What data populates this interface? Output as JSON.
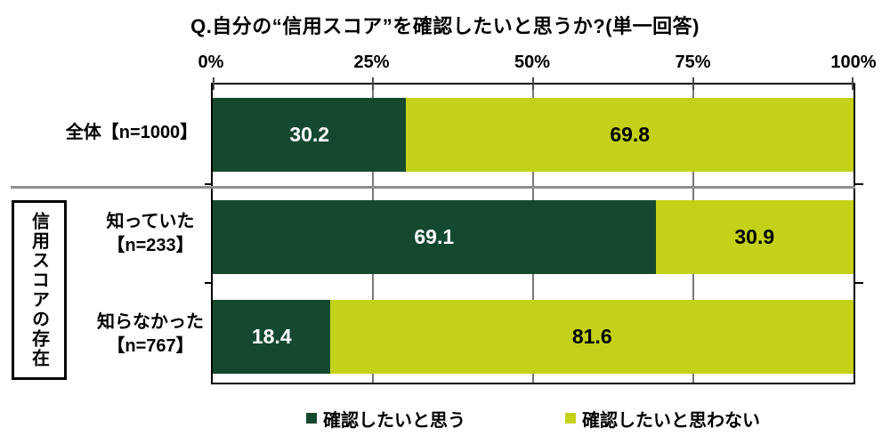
{
  "chart_data": {
    "type": "bar",
    "orientation": "horizontal-stacked",
    "title": "Q.自分の“信用スコア”を確認したいと思うか?(単一回答)",
    "xlabel": "",
    "ylabel": "",
    "axis": {
      "min": 0,
      "max": 100,
      "tick_labels": [
        "0%",
        "25%",
        "50%",
        "75%",
        "100%"
      ]
    },
    "grid": true,
    "legend_position": "bottom",
    "group_label": "信用スコアの存在",
    "categories": [
      {
        "lines": [
          "全体【n=1000】"
        ]
      },
      {
        "lines": [
          "知っていた",
          "【n=233】"
        ]
      },
      {
        "lines": [
          "知らなかった",
          "【n=767】"
        ]
      }
    ],
    "series": [
      {
        "name": "確認したいと思う",
        "color": "#14492f",
        "label_color": "#ffffff",
        "values": [
          30.2,
          69.1,
          18.4
        ]
      },
      {
        "name": "確認したいと思わない",
        "color": "#c3d118",
        "label_color": "#000000",
        "values": [
          69.8,
          30.9,
          81.6
        ]
      }
    ],
    "colors": {
      "separator_line": "#8f8f8f",
      "gridline": "#787878",
      "plot_border": "#000000",
      "background": "#ffffff"
    }
  }
}
